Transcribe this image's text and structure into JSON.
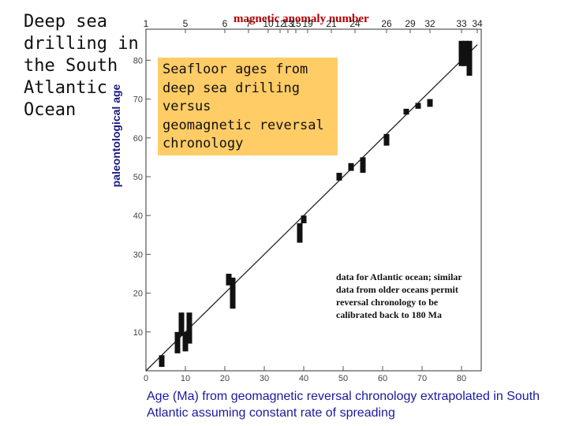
{
  "slide": {
    "title": "Deep sea drilling in the South Atlantic Ocean",
    "callout_lines": [
      "Seafloor ages from",
      "deep sea drilling",
      "versus",
      "geomagnetic reversal",
      "chronology"
    ],
    "note": "data for Atlantic ocean; similar data from older oceans permit reversal chronology to be calibrated back to 180 Ma"
  },
  "chart_data": {
    "type": "scatter",
    "xlabel": "Age (Ma) from geomagnetic reversal chronology extrapolated in South Atlantic assuming constant rate of spreading",
    "ylabel": "paleontological age",
    "top_axis_label": "magnetic anomaly number",
    "xlim": [
      0,
      85
    ],
    "ylim": [
      0,
      88
    ],
    "x_ticks": [
      "0",
      "10",
      "20",
      "30",
      "40",
      "50",
      "60",
      "70",
      "80"
    ],
    "y_ticks": [
      "10",
      "20",
      "30",
      "40",
      "50",
      "60",
      "70",
      "80"
    ],
    "top_ticks": [
      {
        "label": "1",
        "x": 0
      },
      {
        "label": "5",
        "x": 10
      },
      {
        "label": "6",
        "x": 20
      },
      {
        "label": "7",
        "x": 26
      },
      {
        "label": "10",
        "x": 31
      },
      {
        "label": "12",
        "x": 34
      },
      {
        "label": "13",
        "x": 36
      },
      {
        "label": "15",
        "x": 38
      },
      {
        "label": "19",
        "x": 41
      },
      {
        "label": "21",
        "x": 47
      },
      {
        "label": "24",
        "x": 53
      },
      {
        "label": "26",
        "x": 61
      },
      {
        "label": "29",
        "x": 67
      },
      {
        "label": "32",
        "x": 72
      },
      {
        "label": "33",
        "x": 80
      },
      {
        "label": "34",
        "x": 84
      }
    ],
    "grid": false,
    "trend_line": {
      "x": [
        0,
        84
      ],
      "y": [
        0,
        84
      ]
    },
    "series": [
      {
        "points": [
          {
            "x": 4,
            "ymin": 1,
            "ymax": 4
          },
          {
            "x": 8,
            "ymin": 4.5,
            "ymax": 10
          },
          {
            "x": 9,
            "ymin": 9,
            "ymax": 15
          },
          {
            "x": 10,
            "ymin": 5,
            "ymax": 10
          },
          {
            "x": 11,
            "ymin": 7,
            "ymax": 15
          },
          {
            "x": 21,
            "ymin": 22,
            "ymax": 25
          },
          {
            "x": 22,
            "ymin": 16,
            "ymax": 24
          },
          {
            "x": 39,
            "ymin": 33,
            "ymax": 38
          },
          {
            "x": 40,
            "ymin": 38,
            "ymax": 40
          },
          {
            "x": 49,
            "ymin": 49,
            "ymax": 51
          },
          {
            "x": 52,
            "ymin": 51.5,
            "ymax": 53.5
          },
          {
            "x": 55,
            "ymin": 51,
            "ymax": 55
          },
          {
            "x": 61,
            "ymin": 58,
            "ymax": 61
          },
          {
            "x": 66,
            "ymin": 66,
            "ymax": 67.5
          },
          {
            "x": 69,
            "ymin": 67.5,
            "ymax": 69
          },
          {
            "x": 72,
            "ymin": 68,
            "ymax": 70
          },
          {
            "x": 80,
            "ymin": 78.5,
            "ymax": 85
          },
          {
            "x": 81,
            "ymin": 78.5,
            "ymax": 85
          },
          {
            "x": 82,
            "ymin": 76,
            "ymax": 85
          }
        ]
      }
    ]
  },
  "colors": {
    "marker": "#111111",
    "axis": "#555555",
    "callout_bg": "#ffcc66",
    "top_label": "#b00000",
    "x_label": "#1a1aa0",
    "y_label": "#1a1a80"
  }
}
